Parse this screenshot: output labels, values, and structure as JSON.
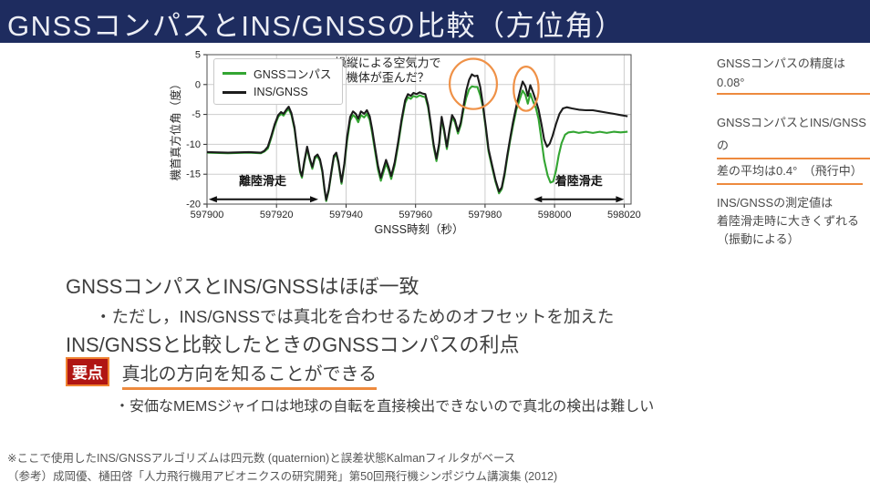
{
  "slide": {
    "title": "GNSSコンパスとINS/GNSSの比較（方位角）"
  },
  "colors": {
    "title_bg": "#1e2c5f",
    "accent_orange": "#ed8a3e",
    "badge_red": "#b01513",
    "badge_border": "#ef8231",
    "text_dark": "#3f3f3f",
    "green_series": "#33a532",
    "black_series": "#1c1c1c"
  },
  "chart_data": {
    "type": "line",
    "title": "",
    "xlabel": "GNSS時刻（秒）",
    "ylabel": "機首真方位角（度）",
    "xlim": [
      597900,
      598022
    ],
    "ylim": [
      -20,
      5
    ],
    "xticks": [
      597900,
      597920,
      597940,
      597960,
      597980,
      598000,
      598020
    ],
    "yticks": [
      5,
      0,
      -5,
      -10,
      -15,
      -20
    ],
    "grid": true,
    "legend_position": "upper left",
    "series": [
      {
        "name": "GNSSコンパス",
        "color": "#33a532",
        "points": [
          [
            597900,
            -11.4
          ],
          [
            597906,
            -11.5
          ],
          [
            597912,
            -11.4
          ],
          [
            597915.5,
            -11.5
          ],
          [
            597916.5,
            -11.2
          ],
          [
            597917.5,
            -10.7
          ],
          [
            597918.5,
            -8.9
          ],
          [
            597919.5,
            -6.9
          ],
          [
            597920.5,
            -5.4
          ],
          [
            597921.3,
            -4.9
          ],
          [
            597922,
            -5.2
          ],
          [
            597922.8,
            -4.5
          ],
          [
            597923.5,
            -4.1
          ],
          [
            597924.3,
            -5.1
          ],
          [
            597925.2,
            -7.5
          ],
          [
            597926,
            -11.3
          ],
          [
            597926.8,
            -14.7
          ],
          [
            597927.3,
            -15.6
          ],
          [
            597928,
            -13.1
          ],
          [
            597928.8,
            -10.7
          ],
          [
            597929.5,
            -12.5
          ],
          [
            597930.3,
            -14.1
          ],
          [
            597931,
            -12.4
          ],
          [
            597931.8,
            -12
          ],
          [
            597932.5,
            -12.8
          ],
          [
            597933.2,
            -14.7
          ],
          [
            597933.8,
            -17.6
          ],
          [
            597934.3,
            -19.5
          ],
          [
            597935,
            -17.8
          ],
          [
            597935.8,
            -14.7
          ],
          [
            597936.5,
            -12.2
          ],
          [
            597937.2,
            -11.7
          ],
          [
            597937.8,
            -13.2
          ],
          [
            597938.7,
            -16.6
          ],
          [
            597939.5,
            -13.5
          ],
          [
            597940.3,
            -9.4
          ],
          [
            597941.2,
            -6
          ],
          [
            597942,
            -5.1
          ],
          [
            597942.8,
            -5.5
          ],
          [
            597943.5,
            -6.3
          ],
          [
            597944.3,
            -5.1
          ],
          [
            597945.2,
            -5.5
          ],
          [
            597946,
            -4.9
          ],
          [
            597946.8,
            -5.9
          ],
          [
            597947.5,
            -8
          ],
          [
            597948.3,
            -11
          ],
          [
            597949.2,
            -14.2
          ],
          [
            597950,
            -16.1
          ],
          [
            597950.8,
            -14.6
          ],
          [
            597951.5,
            -13.2
          ],
          [
            597952.3,
            -14.4
          ],
          [
            597953,
            -15.8
          ],
          [
            597954,
            -13.5
          ],
          [
            597955,
            -10.1
          ],
          [
            597956,
            -6.3
          ],
          [
            597957,
            -3.1
          ],
          [
            597957.8,
            -2.1
          ],
          [
            597958.6,
            -2.4
          ],
          [
            597959.4,
            -1.9
          ],
          [
            597960.3,
            -2.1
          ],
          [
            597961.2,
            -1.8
          ],
          [
            597962,
            -2
          ],
          [
            597962.8,
            -2.1
          ],
          [
            597963.6,
            -3.8
          ],
          [
            597964.4,
            -7
          ],
          [
            597965.2,
            -10.4
          ],
          [
            597966,
            -12.8
          ],
          [
            597966.8,
            -10.2
          ],
          [
            597967.5,
            -5.8
          ],
          [
            597968.2,
            -7.8
          ],
          [
            597969,
            -10.8
          ],
          [
            597969.8,
            -7.8
          ],
          [
            597970.5,
            -5.5
          ],
          [
            597971.3,
            -6.3
          ],
          [
            597972.2,
            -8.2
          ],
          [
            597973,
            -6.8
          ],
          [
            597973.8,
            -4.2
          ],
          [
            597974.6,
            -2.2
          ],
          [
            597975.4,
            -0.8
          ],
          [
            597976.2,
            -0.3
          ],
          [
            597977,
            -0.4
          ],
          [
            597977.8,
            -0.4
          ],
          [
            597978.6,
            -1.8
          ],
          [
            597979.4,
            -3.8
          ],
          [
            597980.2,
            -7.4
          ],
          [
            597981,
            -11.2
          ],
          [
            597982,
            -13.8
          ],
          [
            597983,
            -16.3
          ],
          [
            597984,
            -18.2
          ],
          [
            597984.8,
            -17.5
          ],
          [
            597985.6,
            -15.2
          ],
          [
            597986.4,
            -12.2
          ],
          [
            597987.2,
            -9.4
          ],
          [
            597988,
            -7
          ],
          [
            597989,
            -4.2
          ],
          [
            597990,
            -2.4
          ],
          [
            597990.8,
            -1
          ],
          [
            597991.6,
            -1.7
          ],
          [
            597992.3,
            -3.2
          ],
          [
            597993,
            -1.5
          ],
          [
            597993.8,
            -2.8
          ],
          [
            597994.6,
            -3.9
          ],
          [
            597995.4,
            -5.8
          ],
          [
            597996.2,
            -9.2
          ],
          [
            597997,
            -12.6
          ],
          [
            597998,
            -15.2
          ],
          [
            597998.8,
            -16.4
          ],
          [
            597999.6,
            -16.2
          ],
          [
            598000.4,
            -14.4
          ],
          [
            598001.2,
            -11.8
          ],
          [
            598002,
            -9.8
          ],
          [
            598003,
            -8.4
          ],
          [
            598004,
            -8
          ],
          [
            598005.5,
            -7.9
          ],
          [
            598007,
            -8.1
          ],
          [
            598009,
            -7.9
          ],
          [
            598011,
            -8.1
          ],
          [
            598013,
            -7.9
          ],
          [
            598015,
            -8.1
          ],
          [
            598017,
            -7.9
          ],
          [
            598019,
            -8
          ],
          [
            598021,
            -7.9
          ]
        ]
      },
      {
        "name": "INS/GNSS",
        "color": "#1c1c1c",
        "points": [
          [
            597900,
            -11.3
          ],
          [
            597906,
            -11.4
          ],
          [
            597912,
            -11.3
          ],
          [
            597915.5,
            -11.4
          ],
          [
            597916.5,
            -11.1
          ],
          [
            597917.5,
            -10.4
          ],
          [
            597918.5,
            -8.6
          ],
          [
            597919.5,
            -6.6
          ],
          [
            597920.5,
            -5.1
          ],
          [
            597921.3,
            -4.6
          ],
          [
            597922,
            -4.9
          ],
          [
            597922.8,
            -4.2
          ],
          [
            597923.5,
            -3.7
          ],
          [
            597924.3,
            -4.8
          ],
          [
            597925.2,
            -7.2
          ],
          [
            597926,
            -11
          ],
          [
            597926.8,
            -14.4
          ],
          [
            597927.3,
            -15.3
          ],
          [
            597928,
            -12.8
          ],
          [
            597928.8,
            -10.4
          ],
          [
            597929.5,
            -12.2
          ],
          [
            597930.3,
            -13.8
          ],
          [
            597931,
            -12.1
          ],
          [
            597931.8,
            -11.7
          ],
          [
            597932.5,
            -12.5
          ],
          [
            597933.2,
            -14.4
          ],
          [
            597933.8,
            -17.4
          ],
          [
            597934.3,
            -19.3
          ],
          [
            597935,
            -17.6
          ],
          [
            597935.8,
            -14.4
          ],
          [
            597936.5,
            -11.9
          ],
          [
            597937.2,
            -11.4
          ],
          [
            597937.8,
            -12.9
          ],
          [
            597938.7,
            -16.3
          ],
          [
            597939.5,
            -13.2
          ],
          [
            597940.3,
            -8.8
          ],
          [
            597941.2,
            -5.4
          ],
          [
            597942,
            -4.5
          ],
          [
            597942.8,
            -4.9
          ],
          [
            597943.5,
            -5.7
          ],
          [
            597944.3,
            -4.5
          ],
          [
            597945.2,
            -4.9
          ],
          [
            597946,
            -4.3
          ],
          [
            597946.8,
            -5.3
          ],
          [
            597947.5,
            -7.4
          ],
          [
            597948.3,
            -10.4
          ],
          [
            597949.2,
            -13.6
          ],
          [
            597950,
            -15.6
          ],
          [
            597950.8,
            -14
          ],
          [
            597951.5,
            -12.6
          ],
          [
            597952.3,
            -13.9
          ],
          [
            597953,
            -15.3
          ],
          [
            597954,
            -13
          ],
          [
            597955,
            -9.6
          ],
          [
            597956,
            -5.8
          ],
          [
            597957,
            -2.6
          ],
          [
            597957.8,
            -1.6
          ],
          [
            597958.6,
            -1.9
          ],
          [
            597959.4,
            -1.4
          ],
          [
            597960.3,
            -1.6
          ],
          [
            597961.2,
            -1.3
          ],
          [
            597962,
            -1.5
          ],
          [
            597962.8,
            -1.6
          ],
          [
            597963.6,
            -3.4
          ],
          [
            597964.4,
            -6.6
          ],
          [
            597965.2,
            -10
          ],
          [
            597966,
            -12.4
          ],
          [
            597966.8,
            -9.8
          ],
          [
            597967.5,
            -5.4
          ],
          [
            597968.2,
            -7.4
          ],
          [
            597969,
            -10.4
          ],
          [
            597969.8,
            -7.4
          ],
          [
            597970.5,
            -5.1
          ],
          [
            597971.3,
            -5.9
          ],
          [
            597972.2,
            -7.8
          ],
          [
            597973,
            -6.4
          ],
          [
            597973.8,
            -3.6
          ],
          [
            597974.6,
            -1
          ],
          [
            597975.4,
            0.8
          ],
          [
            597976.2,
            1.7
          ],
          [
            597977,
            1.4
          ],
          [
            597977.8,
            1.5
          ],
          [
            597978.6,
            -0.4
          ],
          [
            597979.4,
            -3.4
          ],
          [
            597980.2,
            -7
          ],
          [
            597981,
            -10.8
          ],
          [
            597982,
            -13.4
          ],
          [
            597983,
            -16
          ],
          [
            597984,
            -17.9
          ],
          [
            597984.8,
            -17.2
          ],
          [
            597985.6,
            -14.8
          ],
          [
            597986.4,
            -11.8
          ],
          [
            597987.2,
            -9
          ],
          [
            597988,
            -6.4
          ],
          [
            597989,
            -3.6
          ],
          [
            597990,
            -1.2
          ],
          [
            597990.8,
            0.5
          ],
          [
            597991.6,
            -0.3
          ],
          [
            597992.3,
            -1.9
          ],
          [
            597993,
            -0.1
          ],
          [
            597993.8,
            -1.3
          ],
          [
            597994.6,
            -2.7
          ],
          [
            597995.4,
            -4.2
          ],
          [
            597996.2,
            -6.6
          ],
          [
            597997,
            -9.2
          ],
          [
            597997.8,
            -10.4
          ],
          [
            597998.6,
            -9.9
          ],
          [
            597999.4,
            -8.6
          ],
          [
            598000.4,
            -6.6
          ],
          [
            598001.4,
            -4.9
          ],
          [
            598002.4,
            -4
          ],
          [
            598003.5,
            -3.8
          ],
          [
            598005,
            -4
          ],
          [
            598007,
            -4.2
          ],
          [
            598009,
            -4.3
          ],
          [
            598011,
            -4.3
          ],
          [
            598013,
            -4.5
          ],
          [
            598015,
            -4.7
          ],
          [
            598017,
            -4.9
          ],
          [
            598019,
            -5.1
          ],
          [
            598021,
            -5.3
          ]
        ]
      }
    ],
    "annotations": {
      "note": {
        "lines": [
          "操縦による空気力で",
          "機体が歪んだ？"
        ],
        "t": 597952,
        "v_top": 4.8
      },
      "rolls": [
        {
          "label": "離陸滑走",
          "t1": 597900.5,
          "t2": 597932,
          "arrow_v": -19.2,
          "label_t": 597916,
          "label_v": -16.8
        },
        {
          "label": "着陸滑走",
          "t1": 597994,
          "t2": 598020,
          "arrow_v": -19.2,
          "label_t": 598007,
          "label_v": -16.8
        }
      ],
      "circles": [
        {
          "t": 597976.6,
          "v": 0.1,
          "rt": 6.8,
          "rv": 4.2
        },
        {
          "t": 597991.8,
          "v": -0.7,
          "rt": 3.6,
          "rv": 3.7
        }
      ]
    }
  },
  "notes_right": {
    "n1": "GNSSコンパスの精度は0.08°",
    "n2a": "GNSSコンパスとINS/GNSSの",
    "n2b": "差の平均は0.4°　（飛行中）",
    "n3a": "INS/GNSSの測定値は",
    "n3b": "着陸滑走時に大きくずれる",
    "n3c": "（振動による）"
  },
  "body": {
    "l1": "GNSSコンパスとINS/GNSSはほぼ一致",
    "l2": "・ただし，INS/GNSSでは真北を合わせるためのオフセットを加えた",
    "l3": "INS/GNSSと比較したときのGNSSコンパスの利点",
    "badge": "要点",
    "l4": "真北の方向を知ることができる",
    "l5": "・安価なMEMSジャイロは地球の自転を直接検出できないので真北の検出は難しい"
  },
  "footnotes": {
    "f1": "※ここで使用したINS/GNSSアルゴリズムは四元数 (quaternion)と誤差状態Kalmanフィルタがベース",
    "f2": "（参考）成岡優、樋田啓「人力飛行機用アビオニクスの研究開発」第50回飛行機シンポジウム講演集 (2012)"
  }
}
